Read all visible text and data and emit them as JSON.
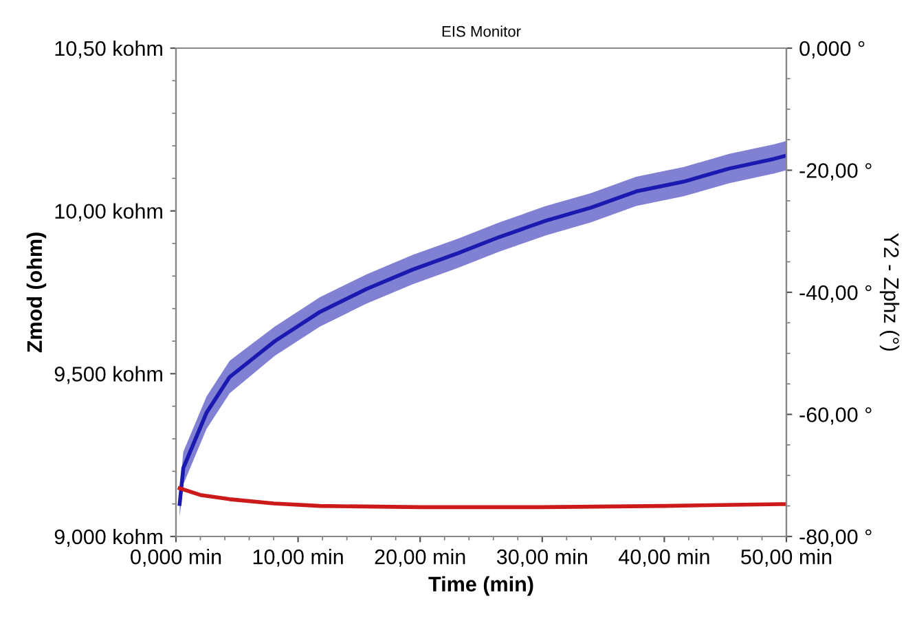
{
  "chart_data": {
    "type": "line",
    "title": "EIS Monitor",
    "xlabel": "Time (min)",
    "ylabel": "Zmod (ohm)",
    "y2label": "Y2 - Zphz (°)",
    "xlim": [
      0,
      50
    ],
    "xticks": [
      {
        "value": 0,
        "label": "0,000 min"
      },
      {
        "value": 10,
        "label": "10,00 min"
      },
      {
        "value": 20,
        "label": "20,00 min"
      },
      {
        "value": 30,
        "label": "30,00 min"
      },
      {
        "value": 40,
        "label": "40,00 min"
      },
      {
        "value": 50,
        "label": "50,00 min"
      }
    ],
    "ylim": [
      9.0,
      10.5
    ],
    "yticks": [
      {
        "value": 9.0,
        "label": "9,000 kohm"
      },
      {
        "value": 9.5,
        "label": "9,500 kohm"
      },
      {
        "value": 10.0,
        "label": "10,00 kohm"
      },
      {
        "value": 10.5,
        "label": "10,50 kohm"
      }
    ],
    "y2lim": [
      -80,
      0
    ],
    "y2ticks": [
      {
        "value": -80,
        "label": "-80,00 °"
      },
      {
        "value": -60,
        "label": "-60,00 °"
      },
      {
        "value": -40,
        "label": "-40,00 °"
      },
      {
        "value": -20,
        "label": "-20,00 °"
      },
      {
        "value": 0,
        "label": "0,000 °"
      }
    ],
    "grid": false,
    "series": [
      {
        "color": "#1a1ab0",
        "x": [
          0.3,
          0.6,
          2.5,
          4.4,
          8.1,
          11.8,
          15.6,
          19.4,
          23.1,
          26.5,
          30.3,
          34,
          37.7,
          41.6,
          45.3,
          49,
          50
        ],
        "values": [
          9.1,
          9.21,
          9.38,
          9.49,
          9.6,
          9.69,
          9.76,
          9.82,
          9.87,
          9.92,
          9.97,
          10.01,
          10.06,
          10.09,
          10.13,
          10.16,
          10.17
        ],
        "lower": [
          9.06,
          9.16,
          9.33,
          9.44,
          9.555,
          9.645,
          9.715,
          9.775,
          9.825,
          9.875,
          9.925,
          9.965,
          10.015,
          10.045,
          10.085,
          10.115,
          10.125
        ],
        "upper": [
          9.14,
          9.26,
          9.43,
          9.54,
          9.645,
          9.735,
          9.805,
          9.865,
          9.915,
          9.965,
          10.015,
          10.055,
          10.105,
          10.135,
          10.175,
          10.205,
          10.215
        ]
      },
      {
        "color": "#cc1a1a",
        "axis": "y2",
        "x": [
          0.3,
          2,
          4.4,
          8,
          11.8,
          20,
          30,
          40,
          49.5,
          50
        ],
        "values": [
          -72.1,
          -73.2,
          -73.9,
          -74.6,
          -75.0,
          -75.2,
          -75.2,
          -75.0,
          -74.7,
          -74.7
        ]
      }
    ]
  }
}
